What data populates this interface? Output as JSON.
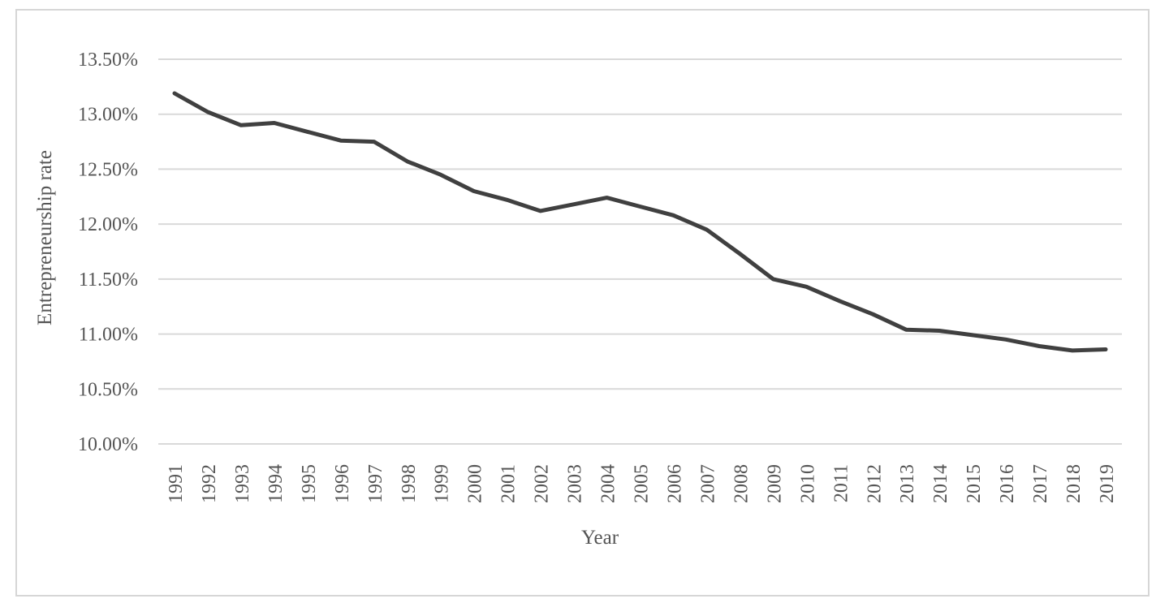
{
  "chart_data": {
    "type": "line",
    "title": "",
    "xlabel": "Year",
    "ylabel": "Entrepreneurship rate",
    "ylim": [
      10.0,
      13.5
    ],
    "y_ticks": [
      "10.00%",
      "10.50%",
      "11.00%",
      "11.50%",
      "12.00%",
      "12.50%",
      "13.00%",
      "13.50%"
    ],
    "y_tick_values": [
      10.0,
      10.5,
      11.0,
      11.5,
      12.0,
      12.5,
      13.0,
      13.5
    ],
    "y_unit": "%",
    "grid": "horizontal",
    "legend": "none",
    "x": [
      "1991",
      "1992",
      "1993",
      "1994",
      "1995",
      "1996",
      "1997",
      "1998",
      "1999",
      "2000",
      "2001",
      "2002",
      "2003",
      "2004",
      "2005",
      "2006",
      "2007",
      "2008",
      "2009",
      "2010",
      "2011",
      "2012",
      "2013",
      "2014",
      "2015",
      "2016",
      "2017",
      "2018",
      "2019"
    ],
    "series": [
      {
        "color": "#404040",
        "values": [
          13.19,
          13.02,
          12.9,
          12.92,
          12.84,
          12.76,
          12.75,
          12.57,
          12.45,
          12.3,
          12.22,
          12.12,
          12.18,
          12.24,
          12.16,
          12.08,
          11.95,
          11.73,
          11.5,
          11.43,
          11.3,
          11.18,
          11.04,
          11.03,
          10.99,
          10.95,
          10.89,
          10.85,
          10.86
        ]
      }
    ]
  }
}
